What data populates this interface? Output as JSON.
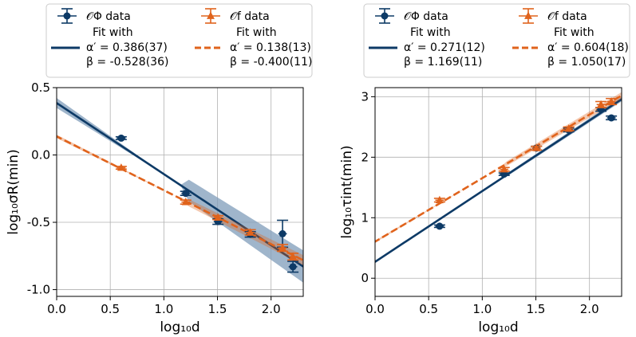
{
  "colors": {
    "phi": "#0d3a66",
    "f": "#e0631c",
    "band": "#7f9cba",
    "grid": "#b0b0b0"
  },
  "chart_data": [
    {
      "type": "scatter",
      "xlabel": "log₁₀d",
      "ylabel": "log₁₀σR(min)",
      "xlim": [
        0.0,
        2.3
      ],
      "ylim": [
        -1.05,
        0.5
      ],
      "xticks": [
        0.0,
        0.5,
        1.0,
        1.5,
        2.0
      ],
      "xtick_labels": [
        "0.0",
        "0.5",
        "1.0",
        "1.5",
        "2.0"
      ],
      "yticks": [
        0.5,
        0.0,
        -0.5,
        -1.0
      ],
      "ytick_labels": [
        "0.5",
        "0.0",
        "-0.5",
        "-1.0"
      ],
      "legend_position": "top",
      "series": [
        {
          "name": "𝒪Φ data",
          "marker": "circle",
          "color_key": "phi",
          "points": [
            {
              "x": 0.602,
              "y": 0.125,
              "xerr": 0.04,
              "yerr": 0.01
            },
            {
              "x": 1.204,
              "y": -0.285,
              "xerr": 0.04,
              "yerr": 0.015
            },
            {
              "x": 1.505,
              "y": -0.495,
              "xerr": 0.04,
              "yerr": 0.02
            },
            {
              "x": 1.806,
              "y": -0.59,
              "xerr": 0.04,
              "yerr": 0.02
            },
            {
              "x": 2.107,
              "y": -0.585,
              "xerr": 0.04,
              "yerr": 0.1
            },
            {
              "x": 2.204,
              "y": -0.83,
              "xerr": 0.04,
              "yerr": 0.04
            }
          ]
        },
        {
          "name": "𝒪f data",
          "marker": "triangle",
          "color_key": "f",
          "points": [
            {
              "x": 0.602,
              "y": -0.095,
              "xerr": 0.04,
              "yerr": 0.01
            },
            {
              "x": 1.204,
              "y": -0.35,
              "xerr": 0.04,
              "yerr": 0.015
            },
            {
              "x": 1.505,
              "y": -0.465,
              "xerr": 0.04,
              "yerr": 0.015
            },
            {
              "x": 1.806,
              "y": -0.575,
              "xerr": 0.04,
              "yerr": 0.02
            },
            {
              "x": 2.107,
              "y": -0.69,
              "xerr": 0.04,
              "yerr": 0.025
            },
            {
              "x": 2.204,
              "y": -0.755,
              "xerr": 0.04,
              "yerr": 0.025
            }
          ]
        }
      ],
      "fits": [
        {
          "color_key": "phi",
          "dashed": false,
          "line1": "Fit with",
          "line2": "α′ = 0.386(37)",
          "line3": "β = -0.528(36)",
          "intercept": 0.386,
          "slope": -0.528,
          "band": 0.037,
          "band_slope": 0.036
        },
        {
          "color_key": "f",
          "dashed": true,
          "line1": "Fit with",
          "line2": "α′ = 0.138(13)",
          "line3": "β = -0.400(11)",
          "intercept": 0.138,
          "slope": -0.4,
          "band": 0.013,
          "band_slope": 0.011
        }
      ]
    },
    {
      "type": "scatter",
      "xlabel": "log₁₀d",
      "ylabel": "log₁₀τint(min)",
      "xlim": [
        0.0,
        2.3
      ],
      "ylim": [
        -0.3,
        3.15
      ],
      "xticks": [
        0.0,
        0.5,
        1.0,
        1.5,
        2.0
      ],
      "xtick_labels": [
        "0.0",
        "0.5",
        "1.0",
        "1.5",
        "2.0"
      ],
      "yticks": [
        3,
        2,
        1,
        0
      ],
      "ytick_labels": [
        "3",
        "2",
        "1",
        "0"
      ],
      "legend_position": "top",
      "series": [
        {
          "name": "𝒪Φ data",
          "marker": "circle",
          "color_key": "phi",
          "points": [
            {
              "x": 0.602,
              "y": 0.86,
              "xerr": 0.04,
              "yerr": 0.02
            },
            {
              "x": 1.204,
              "y": 1.72,
              "xerr": 0.04,
              "yerr": 0.02
            },
            {
              "x": 1.505,
              "y": 2.15,
              "xerr": 0.04,
              "yerr": 0.03
            },
            {
              "x": 1.806,
              "y": 2.45,
              "xerr": 0.04,
              "yerr": 0.03
            },
            {
              "x": 2.107,
              "y": 2.79,
              "xerr": 0.04,
              "yerr": 0.03
            },
            {
              "x": 2.204,
              "y": 2.65,
              "xerr": 0.04,
              "yerr": 0.03
            }
          ]
        },
        {
          "name": "𝒪f data",
          "marker": "triangle",
          "color_key": "f",
          "points": [
            {
              "x": 0.602,
              "y": 1.29,
              "xerr": 0.04,
              "yerr": 0.03
            },
            {
              "x": 1.204,
              "y": 1.8,
              "xerr": 0.04,
              "yerr": 0.03
            },
            {
              "x": 1.505,
              "y": 2.15,
              "xerr": 0.04,
              "yerr": 0.03
            },
            {
              "x": 1.806,
              "y": 2.47,
              "xerr": 0.04,
              "yerr": 0.03
            },
            {
              "x": 2.107,
              "y": 2.87,
              "xerr": 0.04,
              "yerr": 0.05
            },
            {
              "x": 2.204,
              "y": 2.92,
              "xerr": 0.04,
              "yerr": 0.05
            }
          ]
        }
      ],
      "fits": [
        {
          "color_key": "phi",
          "dashed": false,
          "line1": "Fit with",
          "line2": "α′ = 0.271(12)",
          "line3": "β = 1.169(11)",
          "intercept": 0.271,
          "slope": 1.169,
          "band": 0.012,
          "band_slope": 0.011
        },
        {
          "color_key": "f",
          "dashed": true,
          "line1": "Fit with",
          "line2": "α′ = 0.604(18)",
          "line3": "β = 1.050(17)",
          "intercept": 0.604,
          "slope": 1.05,
          "band": 0.018,
          "band_slope": 0.017
        }
      ]
    }
  ]
}
